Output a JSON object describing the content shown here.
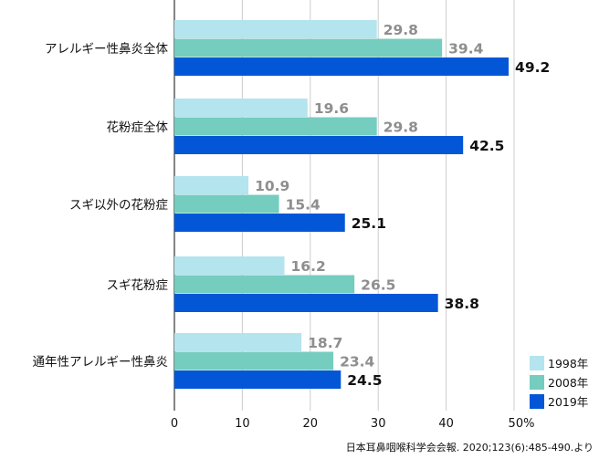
{
  "chart_data": {
    "type": "bar",
    "orientation": "horizontal",
    "categories": [
      "アレルギー性鼻炎全体",
      "花粉症全体",
      "スギ以外の花粉症",
      "スギ花粉症",
      "通年性アレルギー性鼻炎"
    ],
    "series": [
      {
        "name": "1998年",
        "values": [
          29.8,
          19.6,
          10.9,
          16.2,
          18.7
        ],
        "color": "#b4e4ee",
        "label_color": "#8e8e8e",
        "label_bold": true
      },
      {
        "name": "2008年",
        "values": [
          39.4,
          29.8,
          15.4,
          26.5,
          23.4
        ],
        "color": "#74cdbf",
        "label_color": "#8e8e8e",
        "label_bold": true
      },
      {
        "name": "2019年",
        "values": [
          49.2,
          42.5,
          25.1,
          38.8,
          24.5
        ],
        "color": "#0357d7",
        "label_color": "#111111",
        "label_bold": true
      }
    ],
    "x_ticks": [
      "0",
      "10",
      "20",
      "30",
      "40",
      "50%"
    ],
    "xlim": [
      0,
      50
    ],
    "grid": "vertical",
    "legend": "bottom-right",
    "title": "",
    "xlabel": "",
    "ylabel": "",
    "source_note": "日本耳鼻咽喉科学会会報. 2020;123(6):485-490.より"
  }
}
